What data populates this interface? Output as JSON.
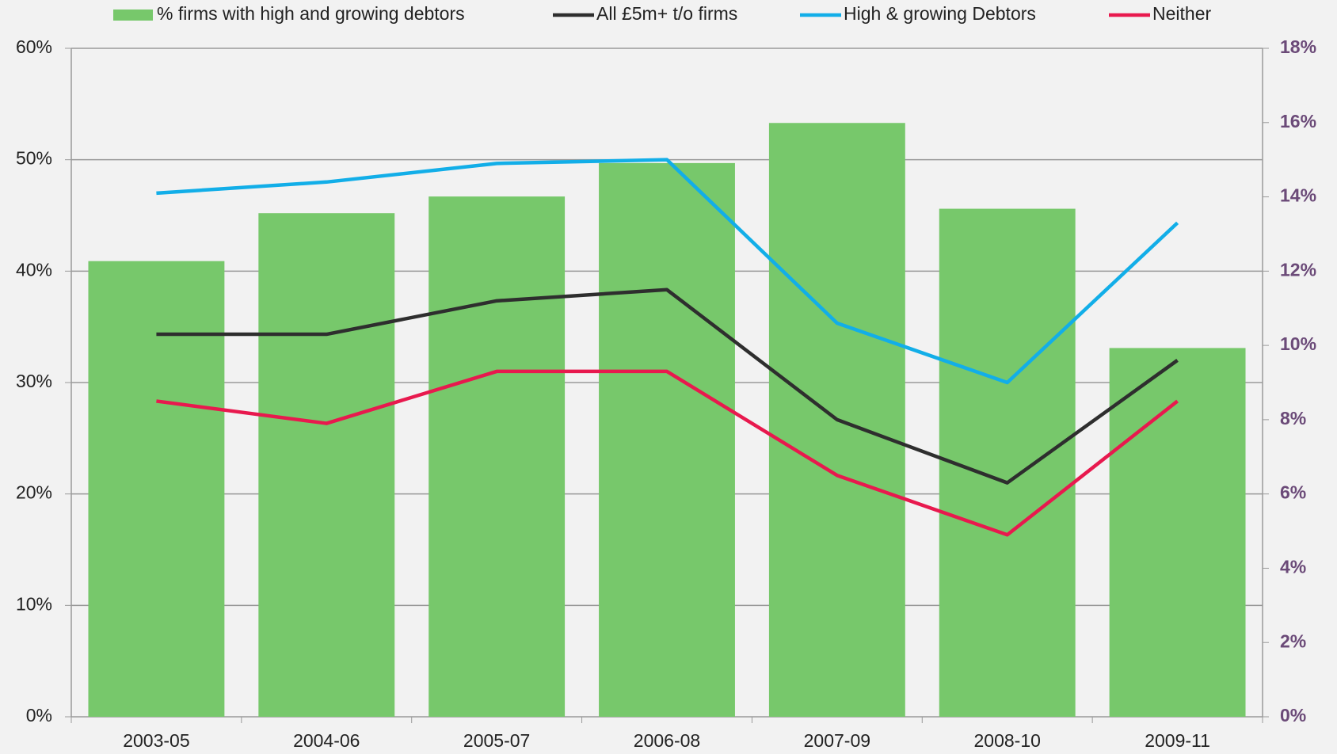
{
  "chart_data": {
    "type": "bar-line",
    "categories": [
      "2003-05",
      "2004-06",
      "2005-07",
      "2006-08",
      "2007-09",
      "2008-10",
      "2009-11"
    ],
    "series": [
      {
        "name": "% firms with high and growing debtors",
        "type": "bar",
        "color": "#77c86b",
        "values": [
          40.9,
          45.2,
          46.7,
          49.7,
          53.3,
          45.6,
          33.1
        ]
      },
      {
        "name": "All £5m+ t/o firms",
        "type": "line",
        "axis": "y2",
        "color": "#2e2e2e",
        "values": [
          10.3,
          10.3,
          11.2,
          11.5,
          8.0,
          6.3,
          9.6
        ]
      },
      {
        "name": "High & growing Debtors",
        "type": "line",
        "axis": "y2",
        "color": "#12aee8",
        "values": [
          14.1,
          14.4,
          14.9,
          15.0,
          10.6,
          9.0,
          13.3
        ]
      },
      {
        "name": "Neither",
        "type": "line",
        "axis": "y2",
        "color": "#e8194e",
        "values": [
          8.5,
          7.9,
          9.3,
          9.3,
          6.5,
          4.9,
          8.5
        ]
      }
    ],
    "ylim": [
      0,
      60
    ],
    "yticks": [
      {
        "value": 0,
        "label": "0%"
      },
      {
        "value": 10,
        "label": "10%"
      },
      {
        "value": 20,
        "label": "20%"
      },
      {
        "value": 30,
        "label": "30%"
      },
      {
        "value": 40,
        "label": "40%"
      },
      {
        "value": 50,
        "label": "50%"
      },
      {
        "value": 60,
        "label": "60%"
      }
    ],
    "y2lim": [
      0,
      18
    ],
    "y2ticks": [
      {
        "value": 0,
        "label": "0%"
      },
      {
        "value": 2,
        "label": "2%"
      },
      {
        "value": 4,
        "label": "4%"
      },
      {
        "value": 6,
        "label": "6%"
      },
      {
        "value": 8,
        "label": "8%"
      },
      {
        "value": 10,
        "label": "10%"
      },
      {
        "value": 12,
        "label": "12%"
      },
      {
        "value": 14,
        "label": "14%"
      },
      {
        "value": 16,
        "label": "16%"
      },
      {
        "value": 18,
        "label": "18%"
      }
    ],
    "grid": true,
    "legend": "top"
  }
}
